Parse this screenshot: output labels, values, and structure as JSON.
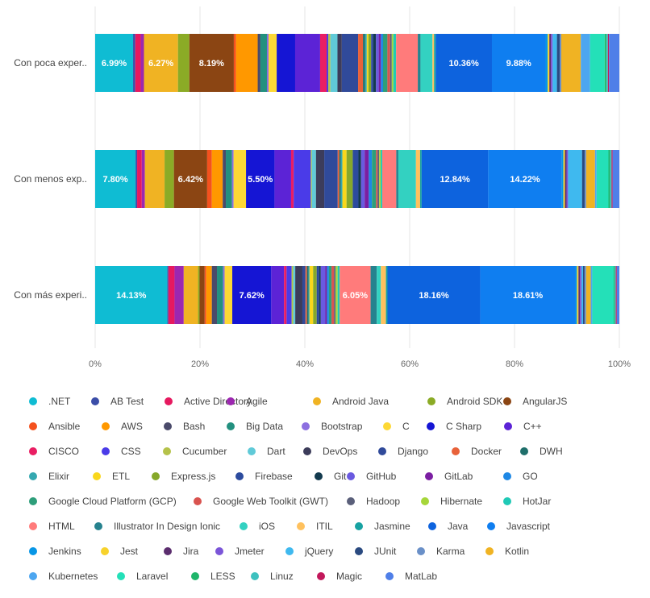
{
  "chart_data": {
    "type": "bar",
    "orientation": "horizontal",
    "stacked": "percent",
    "categories": [
      "Con poca exper..",
      "Con menos exp..",
      "Con más experi.."
    ],
    "x_ticks": [
      "0%",
      "20%",
      "40%",
      "60%",
      "80%",
      "100%"
    ],
    "xlim": [
      0,
      100
    ],
    "grid": true,
    "legend_position": "bottom",
    "series": [
      {
        "name": ".NET",
        "color": "#0fbcd3",
        "values": [
          6.99,
          7.8,
          14.13
        ],
        "labels": [
          "6.99%",
          "7.80%",
          "14.13%"
        ]
      },
      {
        "name": "AB Test",
        "color": "#3b4ea8",
        "values": [
          0.4,
          0.3,
          0.2
        ]
      },
      {
        "name": "Active Directory",
        "color": "#e6195f",
        "values": [
          1.0,
          0.9,
          1.2
        ]
      },
      {
        "name": "Agile",
        "color": "#9c27b0",
        "values": [
          0.6,
          0.6,
          1.8
        ]
      },
      {
        "name": "Android Java",
        "color": "#f0b323",
        "values": [
          6.27,
          3.8,
          2.8
        ],
        "labels": [
          "6.27%",
          "",
          ""
        ]
      },
      {
        "name": "Android SDK",
        "color": "#8bab26",
        "values": [
          2.1,
          1.8,
          0.3
        ]
      },
      {
        "name": "AngularJS",
        "color": "#8b4513",
        "values": [
          8.19,
          6.42,
          1.0
        ],
        "labels": [
          "8.19%",
          "6.42%",
          ""
        ]
      },
      {
        "name": "Ansible",
        "color": "#f4511e",
        "values": [
          0.4,
          0.9,
          0.3
        ]
      },
      {
        "name": "AWS",
        "color": "#ff9800",
        "values": [
          4.0,
          2.1,
          1.1
        ]
      },
      {
        "name": "Bash",
        "color": "#4a4a6a",
        "values": [
          0.5,
          0.6,
          1.0
        ]
      },
      {
        "name": "Big Data",
        "color": "#23907f",
        "values": [
          1.2,
          1.2,
          1.2
        ]
      },
      {
        "name": "Bootstrap",
        "color": "#8c6fe0",
        "values": [
          0.3,
          0.3,
          0.3
        ]
      },
      {
        "name": "C",
        "color": "#fdd835",
        "values": [
          1.5,
          2.4,
          1.5
        ]
      },
      {
        "name": "C Sharp",
        "color": "#1515d4",
        "values": [
          3.4,
          5.5,
          7.62
        ],
        "labels": [
          "",
          "5.50%",
          "7.62%"
        ]
      },
      {
        "name": "C++",
        "color": "#5c23d6",
        "values": [
          4.6,
          3.2,
          2.5
        ]
      },
      {
        "name": "CISCO",
        "color": "#e91e63",
        "values": [
          1.2,
          0.5,
          0.5
        ]
      },
      {
        "name": "CSS",
        "color": "#4a3be8",
        "values": [
          0.3,
          3.3,
          1.0
        ]
      },
      {
        "name": "Cucumber",
        "color": "#b5c24a",
        "values": [
          0.4,
          0.2,
          0.3
        ]
      },
      {
        "name": "Dart",
        "color": "#60cad8",
        "values": [
          1.3,
          0.8,
          0.4
        ]
      },
      {
        "name": "DevOps",
        "color": "#3c3c5a",
        "values": [
          0.8,
          1.6,
          1.4
        ]
      },
      {
        "name": "Django",
        "color": "#304a9a",
        "values": [
          3.0,
          2.6,
          0.6
        ]
      },
      {
        "name": "Docker",
        "color": "#e8623a",
        "values": [
          0.9,
          0.3,
          0.3
        ]
      },
      {
        "name": "DWH",
        "color": "#1f6f6b",
        "values": [
          0.4,
          0.3,
          0.3
        ]
      },
      {
        "name": "Elixir",
        "color": "#35a8b0",
        "values": [
          0.3,
          0.3,
          0.2
        ]
      },
      {
        "name": "ETL",
        "color": "#f9d71c",
        "values": [
          0.3,
          0.8,
          0.7
        ]
      },
      {
        "name": "Express.js",
        "color": "#86a82a",
        "values": [
          0.5,
          1.2,
          0.7
        ]
      },
      {
        "name": "Firebase",
        "color": "#2c4b9e",
        "values": [
          0.4,
          1.1,
          0.5
        ]
      },
      {
        "name": "Git",
        "color": "#133a4e",
        "values": [
          0.5,
          0.5,
          0.3
        ]
      },
      {
        "name": "GitHub",
        "color": "#6a5ae0",
        "values": [
          0.5,
          0.7,
          0.9
        ]
      },
      {
        "name": "GitLab",
        "color": "#7b1fa2",
        "values": [
          0.4,
          0.8,
          0.3
        ]
      },
      {
        "name": "GO",
        "color": "#1e88e5",
        "values": [
          0.4,
          0.6,
          0.4
        ]
      },
      {
        "name": "Google Cloud Platform (GCP)",
        "color": "#2e9e7a",
        "values": [
          0.8,
          0.8,
          0.5
        ]
      },
      {
        "name": "Google Web Toolkit (GWT)",
        "color": "#d9534f",
        "values": [
          0.5,
          0.3,
          0.5
        ]
      },
      {
        "name": "Hadoop",
        "color": "#5a5f7a",
        "values": [
          0.3,
          0.3,
          0.3
        ]
      },
      {
        "name": "Hibernate",
        "color": "#a6d63a",
        "values": [
          0.3,
          0.3,
          0.4
        ]
      },
      {
        "name": "HotJar",
        "color": "#20c9b6",
        "values": [
          0.5,
          0.3,
          0.4
        ]
      },
      {
        "name": "HTML",
        "color": "#ff7b7b",
        "values": [
          4.0,
          2.7,
          6.05
        ],
        "labels": [
          "",
          "",
          "6.05%"
        ]
      },
      {
        "name": "Illustrator In Design Ionic",
        "color": "#26828e",
        "values": [
          0.5,
          0.4,
          1.2
        ]
      },
      {
        "name": "iOS",
        "color": "#33d1c1",
        "values": [
          2.2,
          3.4,
          0.8
        ]
      },
      {
        "name": "ITIL",
        "color": "#ffc15e",
        "values": [
          0.3,
          0.8,
          1.0
        ]
      },
      {
        "name": "Jasmine",
        "color": "#17a2a2",
        "values": [
          0.3,
          0.3,
          0.3
        ]
      },
      {
        "name": "Java",
        "color": "#0d63de",
        "values": [
          10.36,
          12.84,
          18.16
        ],
        "labels": [
          "10.36%",
          "12.84%",
          "18.16%"
        ]
      },
      {
        "name": "Javascript",
        "color": "#0f7ef0",
        "values": [
          9.88,
          14.22,
          18.61
        ],
        "labels": [
          "9.88%",
          "14.22%",
          "18.61%"
        ]
      },
      {
        "name": "Jenkins",
        "color": "#0796e6",
        "values": [
          0.4,
          0.3,
          0.3
        ]
      },
      {
        "name": "Jest",
        "color": "#f7d22c",
        "values": [
          0.3,
          0.3,
          0.3
        ]
      },
      {
        "name": "Jira",
        "color": "#5b2d6e",
        "values": [
          0.3,
          0.3,
          0.3
        ]
      },
      {
        "name": "Jmeter",
        "color": "#7b55d8",
        "values": [
          0.3,
          0.3,
          0.3
        ]
      },
      {
        "name": "jQuery",
        "color": "#3fb9ef",
        "values": [
          0.8,
          2.7,
          0.3
        ]
      },
      {
        "name": "JUnit",
        "color": "#2a4a80",
        "values": [
          0.5,
          0.5,
          0.3
        ]
      },
      {
        "name": "Karma",
        "color": "#6a90c8",
        "values": [
          0.3,
          0.3,
          0.3
        ]
      },
      {
        "name": "Kotlin",
        "color": "#f0b323",
        "values": [
          3.6,
          1.7,
          0.9
        ]
      },
      {
        "name": "Kubernetes",
        "color": "#4da6f0",
        "values": [
          1.7,
          0.3,
          0.3
        ]
      },
      {
        "name": "Laravel",
        "color": "#24e0b8",
        "values": [
          2.7,
          2.3,
          4.2
        ]
      },
      {
        "name": "LESS",
        "color": "#1fb56a",
        "values": [
          0.3,
          0.3,
          0.2
        ]
      },
      {
        "name": "Linuz",
        "color": "#3ec1bf",
        "values": [
          0.3,
          0.3,
          0.2
        ]
      },
      {
        "name": "Magic",
        "color": "#c2185b",
        "values": [
          0.2,
          0.2,
          0.2
        ]
      },
      {
        "name": "MatLab",
        "color": "#4f7fe8",
        "values": [
          1.9,
          1.3,
          0.5
        ]
      }
    ]
  }
}
